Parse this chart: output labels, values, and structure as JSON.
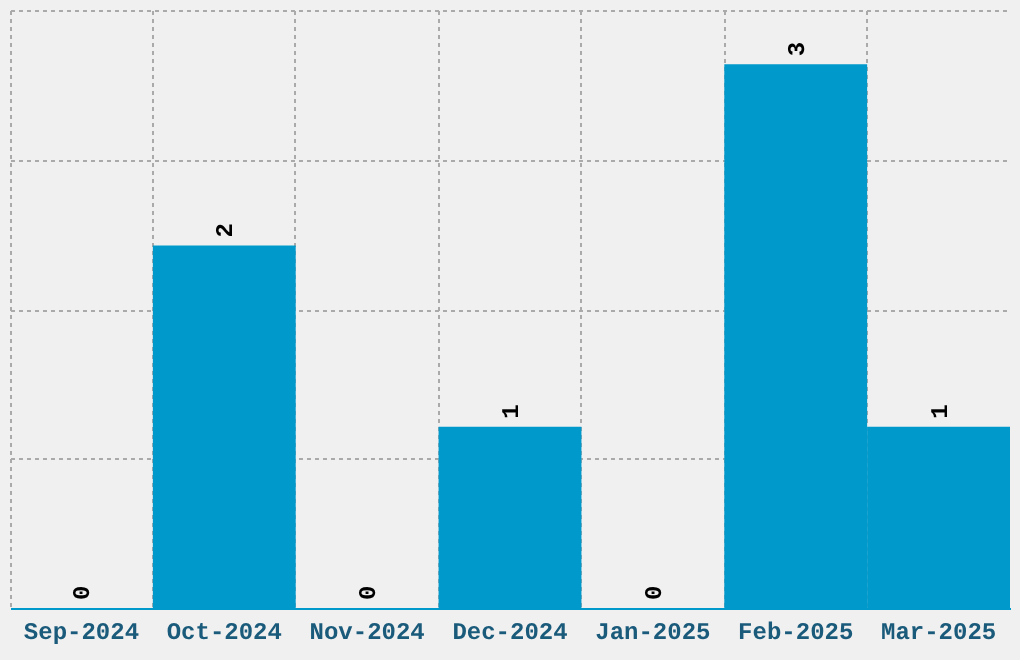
{
  "chart_data": {
    "type": "bar",
    "categories": [
      "Sep-2024",
      "Oct-2024",
      "Nov-2024",
      "Dec-2024",
      "Jan-2025",
      "Feb-2025",
      "Mar-2025"
    ],
    "values": [
      0,
      2,
      0,
      1,
      0,
      3,
      1
    ],
    "color": "#0099cc",
    "ylim": [
      0,
      3.3
    ],
    "yticks": [
      {
        "value": 0,
        "label": null
      },
      {
        "value": 0.825,
        "label": null
      },
      {
        "value": 1.65,
        "label": null
      },
      {
        "value": 2.475,
        "label": null
      },
      {
        "value": 3.3,
        "label": null
      }
    ],
    "tick_labels": "x",
    "grid": true,
    "data_labels": true
  }
}
